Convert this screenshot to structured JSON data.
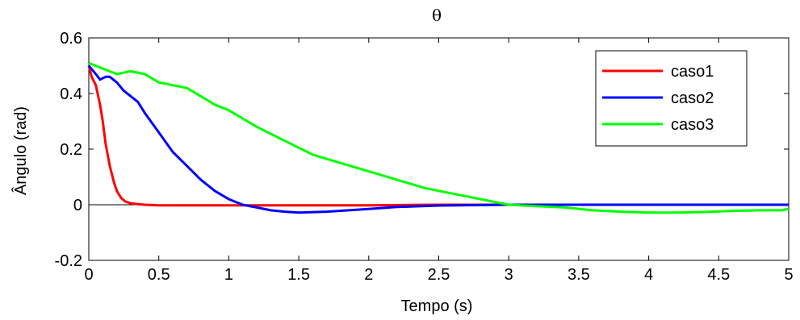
{
  "chart_data": {
    "type": "line",
    "title": "θ",
    "xlabel": "Tempo (s)",
    "ylabel": "Ângulo (rad)",
    "xlim": [
      0,
      5
    ],
    "ylim": [
      -0.2,
      0.6
    ],
    "xticks": [
      0,
      0.5,
      1,
      1.5,
      2,
      2.5,
      3,
      3.5,
      4,
      4.5,
      5
    ],
    "yticks": [
      -0.2,
      0,
      0.2,
      0.4,
      0.6
    ],
    "xtick_labels": [
      "0",
      "0.5",
      "1",
      "1.5",
      "2",
      "2.5",
      "3",
      "3.5",
      "4",
      "4.5",
      "5"
    ],
    "ytick_labels": [
      "-0.2",
      "0",
      "0.2",
      "0.4",
      "0.6"
    ],
    "grid": false,
    "legend_position": "top-right",
    "zero_line": true,
    "series": [
      {
        "name": "caso1",
        "color": "#ff0000",
        "x": [
          0,
          0.02,
          0.05,
          0.08,
          0.1,
          0.12,
          0.15,
          0.18,
          0.2,
          0.23,
          0.26,
          0.3,
          0.35,
          0.4,
          0.5,
          1.0,
          1.5,
          2.0,
          2.5,
          3.0,
          3.5,
          4.0,
          4.5,
          5.0
        ],
        "y": [
          0.5,
          0.46,
          0.43,
          0.36,
          0.3,
          0.22,
          0.14,
          0.08,
          0.05,
          0.025,
          0.012,
          0.005,
          0.002,
          0.0,
          -0.002,
          -0.002,
          -0.002,
          -0.002,
          0.0,
          0.0,
          0.0,
          0.0,
          0.0,
          0.0
        ]
      },
      {
        "name": "caso2",
        "color": "#0000ff",
        "x": [
          0,
          0.05,
          0.08,
          0.12,
          0.15,
          0.2,
          0.25,
          0.3,
          0.35,
          0.4,
          0.5,
          0.6,
          0.7,
          0.8,
          0.9,
          1.0,
          1.1,
          1.2,
          1.3,
          1.4,
          1.5,
          1.7,
          2.0,
          2.2,
          2.5,
          3.0,
          3.5,
          4.0,
          4.5,
          5.0
        ],
        "y": [
          0.5,
          0.47,
          0.45,
          0.46,
          0.46,
          0.44,
          0.41,
          0.39,
          0.37,
          0.33,
          0.26,
          0.19,
          0.14,
          0.09,
          0.05,
          0.02,
          0.0,
          -0.01,
          -0.02,
          -0.025,
          -0.028,
          -0.025,
          -0.015,
          -0.008,
          -0.003,
          0.0,
          0.0,
          0.0,
          0.0,
          0.0
        ]
      },
      {
        "name": "caso3",
        "color": "#00ff00",
        "x": [
          0,
          0.1,
          0.2,
          0.3,
          0.4,
          0.5,
          0.6,
          0.7,
          0.8,
          0.9,
          1.0,
          1.1,
          1.2,
          1.4,
          1.6,
          1.8,
          2.0,
          2.2,
          2.4,
          2.6,
          2.8,
          3.0,
          3.2,
          3.4,
          3.6,
          3.8,
          4.0,
          4.2,
          4.4,
          4.6,
          4.8,
          4.95,
          5.0
        ],
        "y": [
          0.51,
          0.49,
          0.47,
          0.48,
          0.47,
          0.44,
          0.43,
          0.42,
          0.39,
          0.36,
          0.34,
          0.31,
          0.28,
          0.23,
          0.18,
          0.15,
          0.12,
          0.09,
          0.06,
          0.04,
          0.02,
          0.0,
          -0.005,
          -0.01,
          -0.02,
          -0.025,
          -0.028,
          -0.028,
          -0.026,
          -0.022,
          -0.02,
          -0.02,
          -0.015
        ]
      }
    ]
  }
}
